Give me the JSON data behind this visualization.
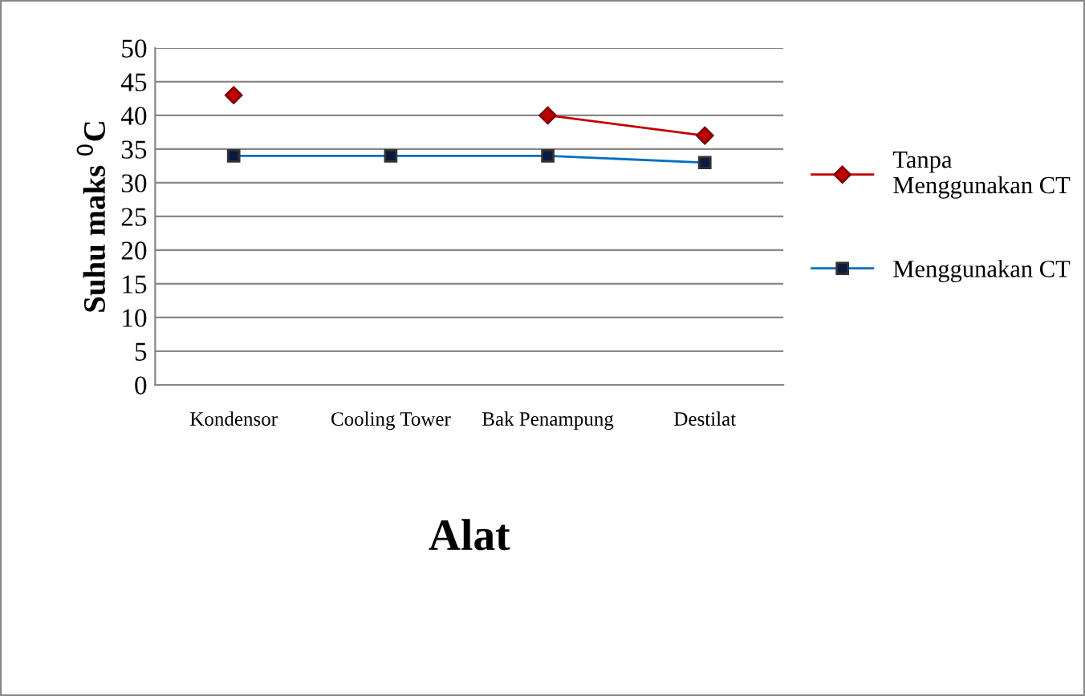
{
  "chart_data": {
    "type": "line",
    "xlabel": "Alat",
    "ylabel": "Suhu maks $^{0}$C",
    "categories": [
      "Kondensor",
      "Cooling Tower",
      "Bak Penampung",
      "Destilat"
    ],
    "series": [
      {
        "name": "Tanpa Menggunakan CT",
        "color": "#c00000",
        "marker": "diamond",
        "values": [
          43,
          null,
          40,
          37
        ]
      },
      {
        "name": "Menggunakan CT",
        "color": "#0070c0",
        "marker": "square",
        "values": [
          34,
          34,
          34,
          33
        ]
      }
    ],
    "ylim": [
      0,
      50
    ],
    "yticks": [
      0,
      5,
      10,
      15,
      20,
      25,
      30,
      35,
      40,
      45,
      50
    ],
    "grid": "y",
    "legend": "right",
    "line_style": "solid"
  }
}
